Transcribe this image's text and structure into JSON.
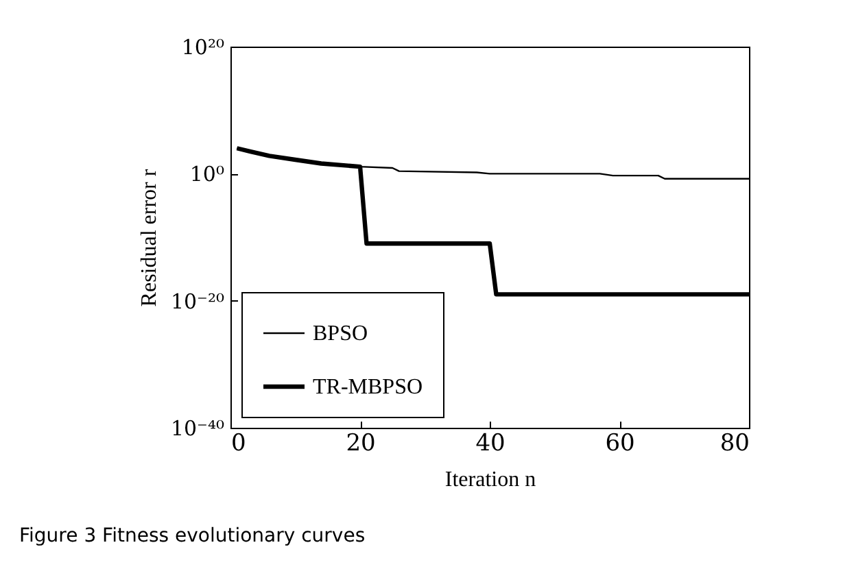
{
  "chart_data": {
    "type": "line",
    "xlabel": "Iteration n",
    "ylabel": "Residual error r",
    "series": [
      {
        "name": "BPSO",
        "color": "#000000",
        "x": [
          1,
          3,
          6,
          10,
          14,
          20,
          25,
          26,
          38,
          40,
          57,
          59,
          66,
          67,
          80
        ],
        "values": [
          10000,
          3162,
          631,
          158,
          40,
          12.6,
          7.9,
          2.5,
          1.6,
          1,
          1,
          0.5,
          0.5,
          0.16,
          0.16
        ]
      },
      {
        "name": "TR-MBPSO",
        "color": "#000000",
        "x": [
          1,
          3,
          6,
          10,
          14,
          20,
          21,
          40,
          41,
          80
        ],
        "values": [
          10000,
          3162,
          631,
          158,
          40,
          12.6,
          1e-11,
          1e-11,
          1e-19,
          1e-19
        ]
      }
    ],
    "log": true,
    "xlim": [
      0,
      80
    ],
    "xticks": [
      0,
      20,
      40,
      60,
      80
    ],
    "ylim": [
      1e-40,
      1e+20
    ],
    "yticks": [
      {
        "value": 1e-40,
        "label": "10⁻⁴⁰"
      },
      {
        "value": 1e-20,
        "label": "10⁻²⁰"
      },
      {
        "value": 1,
        "label": "10⁰"
      },
      {
        "value": 1e+20,
        "label": "10²⁰"
      }
    ],
    "grid": false,
    "legend": "bottom left",
    "marker": "none",
    "line_style": "solid",
    "annotations": [
      "Figure 3  Fitness evolutionary curves"
    ]
  }
}
